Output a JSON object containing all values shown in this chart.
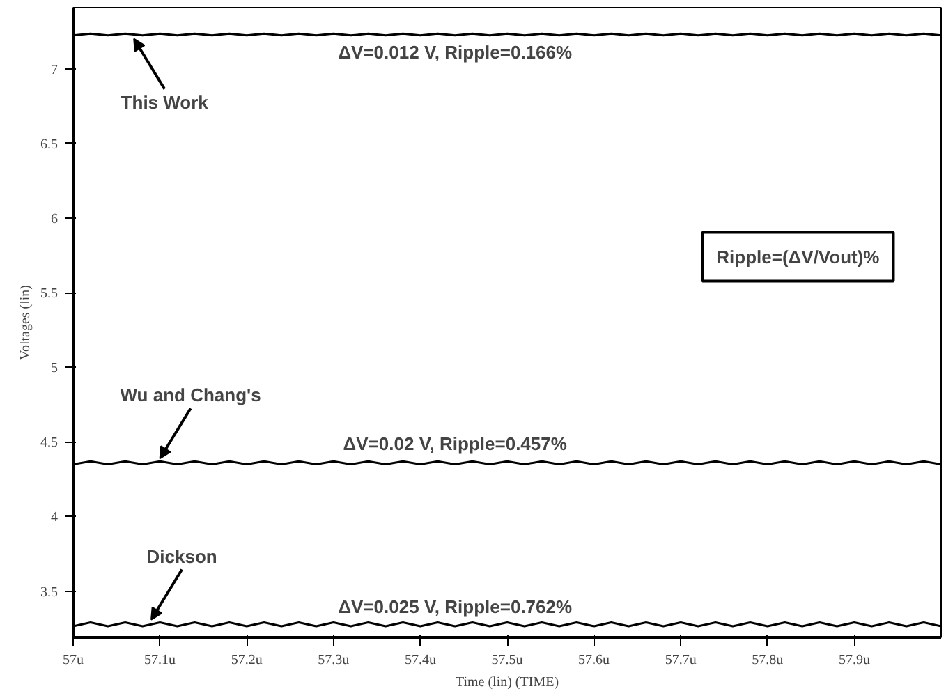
{
  "chart_data": {
    "type": "line",
    "xlabel": "Time (lin) (TIME)",
    "ylabel": "Voltages (lin)",
    "x": [
      57.0,
      57.02,
      57.04,
      57.06,
      57.08,
      57.1,
      57.12,
      57.14,
      57.16,
      57.18,
      57.2,
      57.22,
      57.24,
      57.26,
      57.28,
      57.3,
      57.32,
      57.34,
      57.36,
      57.38,
      57.4,
      57.42,
      57.44,
      57.46,
      57.48,
      57.5,
      57.52,
      57.54,
      57.56,
      57.58,
      57.6,
      57.62,
      57.64,
      57.66,
      57.68,
      57.7,
      57.72,
      57.74,
      57.76,
      57.78,
      57.8,
      57.82,
      57.84,
      57.86,
      57.88,
      57.9,
      57.92,
      57.94,
      57.96,
      57.98,
      58.0
    ],
    "series": [
      {
        "color": "#000000",
        "values": [
          7.224,
          7.236,
          7.224,
          7.236,
          7.224,
          7.236,
          7.224,
          7.236,
          7.224,
          7.236,
          7.224,
          7.236,
          7.224,
          7.236,
          7.224,
          7.236,
          7.224,
          7.236,
          7.224,
          7.236,
          7.224,
          7.236,
          7.224,
          7.236,
          7.224,
          7.236,
          7.224,
          7.236,
          7.224,
          7.236,
          7.224,
          7.236,
          7.224,
          7.236,
          7.224,
          7.236,
          7.224,
          7.236,
          7.224,
          7.236,
          7.224,
          7.236,
          7.224,
          7.236,
          7.224,
          7.236,
          7.224,
          7.236,
          7.224,
          7.236,
          7.224
        ]
      },
      {
        "color": "#000000",
        "values": [
          4.35,
          4.37,
          4.35,
          4.37,
          4.35,
          4.37,
          4.35,
          4.37,
          4.35,
          4.37,
          4.35,
          4.37,
          4.35,
          4.37,
          4.35,
          4.37,
          4.35,
          4.37,
          4.35,
          4.37,
          4.35,
          4.37,
          4.35,
          4.37,
          4.35,
          4.37,
          4.35,
          4.37,
          4.35,
          4.37,
          4.35,
          4.37,
          4.35,
          4.37,
          4.35,
          4.37,
          4.35,
          4.37,
          4.35,
          4.37,
          4.35,
          4.37,
          4.35,
          4.37,
          4.35,
          4.37,
          4.35,
          4.37,
          4.35,
          4.37,
          4.35
        ]
      },
      {
        "color": "#000000",
        "values": [
          3.265,
          3.29,
          3.265,
          3.29,
          3.265,
          3.29,
          3.265,
          3.29,
          3.265,
          3.29,
          3.265,
          3.29,
          3.265,
          3.29,
          3.265,
          3.29,
          3.265,
          3.29,
          3.265,
          3.29,
          3.265,
          3.29,
          3.265,
          3.29,
          3.265,
          3.29,
          3.265,
          3.29,
          3.265,
          3.29,
          3.265,
          3.29,
          3.265,
          3.29,
          3.265,
          3.29,
          3.265,
          3.29,
          3.265,
          3.29,
          3.265,
          3.29,
          3.265,
          3.29,
          3.265,
          3.29,
          3.265,
          3.29,
          3.265,
          3.29,
          3.265
        ]
      }
    ],
    "xlim": [
      57.0,
      58.0
    ],
    "xticks": [
      {
        "value": 57.0,
        "label": "57u"
      },
      {
        "value": 57.1,
        "label": "57.1u"
      },
      {
        "value": 57.2,
        "label": "57.2u"
      },
      {
        "value": 57.3,
        "label": "57.3u"
      },
      {
        "value": 57.4,
        "label": "57.4u"
      },
      {
        "value": 57.5,
        "label": "57.5u"
      },
      {
        "value": 57.6,
        "label": "57.6u"
      },
      {
        "value": 57.7,
        "label": "57.7u"
      },
      {
        "value": 57.8,
        "label": "57.8u"
      },
      {
        "value": 57.9,
        "label": "57.9u"
      }
    ],
    "ylim": [
      3.19,
      7.41
    ],
    "yticks": [
      3.5,
      4,
      4.5,
      5,
      5.5,
      6,
      6.5,
      7
    ],
    "grid": false,
    "annotations": [
      {
        "text": "This Work",
        "x": 57.07,
        "y": 7.22
      },
      {
        "text": "Wu and Chang's",
        "x": 57.1,
        "y": 4.37
      },
      {
        "text": "Dickson",
        "x": 57.09,
        "y": 3.29
      },
      {
        "text": "ΔV=0.012 V, Ripple=0.166%",
        "x": 57.44,
        "y": 7.23
      },
      {
        "text": "ΔV=0.02 V, Ripple=0.457%",
        "x": 57.44,
        "y": 4.37
      },
      {
        "text": "ΔV=0.025 V, Ripple=0.762%",
        "x": 57.44,
        "y": 3.28
      },
      "Ripple=(ΔV/Vout)%"
    ]
  }
}
